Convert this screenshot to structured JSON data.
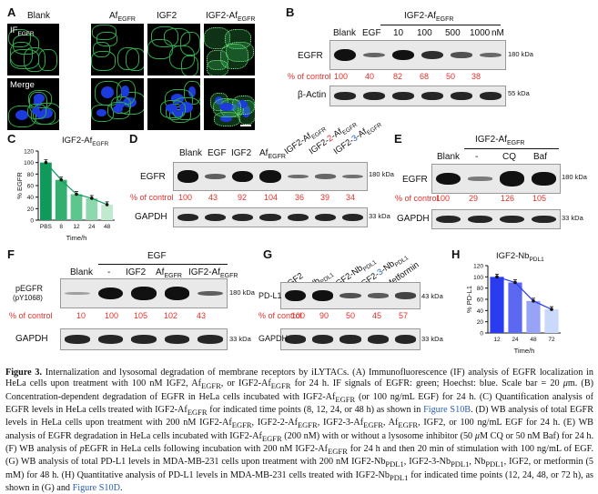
{
  "panelA": {
    "letter": "A",
    "columns": [
      "Blank",
      "Af",
      "IGF2",
      "IGF2-Af"
    ],
    "column_sub": [
      "",
      "EGFR",
      "",
      "EGFR"
    ],
    "row1_label": "IF",
    "row1_sub": "EGFR",
    "row2_label": "Merge"
  },
  "panelB": {
    "letter": "B",
    "group_label": "IGF2-Af",
    "group_sub": "EGFR",
    "lanes": [
      "Blank",
      "EGF",
      "10",
      "100",
      "500",
      "1000"
    ],
    "unit": "nM",
    "blot1_label": "EGFR",
    "blot1_mw": "180 kDa",
    "blot2_label": "β-Actin",
    "blot2_mw": "55 kDa",
    "pct_label": "% of control",
    "pct_values": [
      "100",
      "40",
      "82",
      "68",
      "50",
      "38"
    ]
  },
  "panelC": {
    "letter": "C",
    "title": "IGF2-Af",
    "title_sub": "EGFR",
    "chart_data": {
      "type": "bar",
      "categories": [
        "PBS",
        "8",
        "12",
        "24",
        "48"
      ],
      "values": [
        100,
        70,
        45,
        38,
        27
      ],
      "xlabel": "Time/h",
      "ylabel": "% EGFR",
      "ylim": [
        0,
        120
      ],
      "yticks": [
        "0",
        "20",
        "40",
        "60",
        "80",
        "100",
        "120"
      ],
      "colors": [
        "#0f9a5c",
        "#33b06f",
        "#5ec58c",
        "#8ed8ad",
        "#bfeacd"
      ]
    }
  },
  "panelD": {
    "letter": "D",
    "lanes": [
      "Blank",
      "EGF",
      "IGF2",
      "Af"
    ],
    "lane_sub": [
      "",
      "",
      "",
      "EGFR"
    ],
    "rot_lanes": [
      {
        "a": "IGF2-Af",
        "b": "",
        "c": "EGFR"
      },
      {
        "a": "IGF2-",
        "b": "2",
        "c": "-Af",
        "d": "EGFR"
      },
      {
        "a": "IGF2-",
        "b": "3",
        "c": "-Af",
        "d": "EGFR"
      }
    ],
    "blot1_label": "EGFR",
    "blot1_mw": "180 kDa",
    "blot2_label": "GAPDH",
    "blot2_mw": "33 kDa",
    "pct_label": "% of control",
    "pct_values": [
      "100",
      "43",
      "92",
      "104",
      "36",
      "39",
      "34"
    ]
  },
  "panelE": {
    "letter": "E",
    "group_label": "IGF2-Af",
    "group_sub": "EGFR",
    "lanes": [
      "Blank",
      "-",
      "CQ",
      "Baf"
    ],
    "blot1_label": "EGFR",
    "blot1_mw": "180 kDa",
    "blot2_label": "GAPDH",
    "blot2_mw": "33 kDa",
    "pct_label": "% of control",
    "pct_values": [
      "100",
      "29",
      "126",
      "105"
    ]
  },
  "panelF": {
    "letter": "F",
    "group_label": "EGF",
    "lanes": [
      "Blank",
      "-",
      "IGF2",
      "Af",
      "IGF2-Af"
    ],
    "lane_sub": [
      "",
      "",
      "",
      "EGFR",
      "EGFR"
    ],
    "blot1_label": "pEGFR",
    "blot1_label2": "(pY1068)",
    "blot1_mw": "180 kDa",
    "blot2_label": "GAPDH",
    "blot2_mw": "33 kDa",
    "pct_label": "% of control",
    "pct_values": [
      "10",
      "100",
      "105",
      "102",
      "43"
    ]
  },
  "panelG": {
    "letter": "G",
    "rot_lanes": [
      {
        "a": "IGF2",
        "b": "",
        "c": "",
        "d": ""
      },
      {
        "a": "Nb",
        "b": "",
        "c": "",
        "d": "PDL1"
      },
      {
        "a": "IGF2-Nb",
        "b": "",
        "c": "",
        "d": "PDL1"
      },
      {
        "a": "IGF2-",
        "b": "3",
        "c": "-Nb",
        "d": "PDL1"
      },
      {
        "a": "Metformin",
        "b": "",
        "c": "",
        "d": ""
      }
    ],
    "blot1_label": "PD-L1",
    "blot1_mw": "43 kDa",
    "blot2_label": "GAPDH",
    "blot2_mw": "33 kDa",
    "pct_label": "% of control",
    "pct_values": [
      "100",
      "90",
      "50",
      "45",
      "57"
    ]
  },
  "panelH": {
    "letter": "H",
    "title": "IGF2-Nb",
    "title_sub": "PDL1",
    "chart_data": {
      "type": "bar",
      "categories": [
        "12",
        "24",
        "48",
        "72"
      ],
      "values": [
        100,
        90,
        57,
        42
      ],
      "xlabel": "Time/h",
      "ylabel": "% PD-L1",
      "ylim": [
        0,
        120
      ],
      "yticks": [
        "0",
        "20",
        "40",
        "60",
        "80",
        "100",
        "120"
      ],
      "colors": [
        "#2b3cf0",
        "#5a68f2",
        "#97a3f7",
        "#c9d8fb"
      ]
    }
  },
  "caption": {
    "p01": "Figure 3.",
    "p02": " Internalization and lysosomal degradation of membrane receptors by iLYTACs. (A) Immunofluorescence (IF) analysis of EGFR localization in HeLa cells upon treatment with 100 nM IGF2, Af",
    "p03": "EGFR",
    "p04": ", or IGF2-Af",
    "p05": "EGFR",
    "p06": " for 24 h. IF signals of EGFR: green; Hoechst: blue. Scale bar = 20 ",
    "p07": "μ",
    "p08": "m. (B) Concentration-dependent degradation of EGFR in HeLa cells incubated with IGF2-Af",
    "p09": "EGFR",
    "p10": " (or 100 ng/mL EGF) for 24 h. (C) Quantification analysis of EGFR levels in HeLa cells treated with IGF2-Af",
    "p11": "EGFR",
    "p12": " for indicated time points (8, 12, 24, or 48 h) as shown in ",
    "p13": "Figure S10B",
    "p14": ". (D) WB analysis of total EGFR levels in HeLa cells upon treatment with 200 nM IGF2-Af",
    "p15": "EGFR",
    "p16": ", IGF2-2-Af",
    "p17": "EGFR",
    "p18": ", IGF2-3-Af",
    "p19": "EGFR",
    "p20": ", Af",
    "p21": "EGFR",
    "p22": ", IGF2, or 100 ng/mL EGF for 24 h. (E) WB analysis of EGFR degradation in HeLa cells incubated with IGF2-Af",
    "p23": "EGFR",
    "p24": " (200 nM) with or without a lysosome inhibitor (50 ",
    "p25": "μ",
    "p26": "M CQ or 50 nM Baf) for 24 h. (F) WB analysis of ",
    "p27": "p",
    "p28": "EGFR in HeLa cells following incubation with 200 nM IGF2-Af",
    "p29": "EGFR",
    "p30": " for 24 h and then 20 min of stimulation with 100 ng/mL of EGF. (G) WB analysis of total PD-L1 levels in MDA-MB-231 cells upon treatment with 200 nM IGF2-Nb",
    "p31": "PDL1",
    "p32": ", IGF2-3-Nb",
    "p33": "PDL1",
    "p34": ", Nb",
    "p35": "PDL1",
    "p36": ", IGF2, or metformin (5 mM) for 48 h. (H) Quantitative analysis of PD-L1 levels in MDA-MB-231 cells treated with IGF2-Nb",
    "p37": "PDL1",
    "p38": " for indicated time points (12, 24, 48, or 72 h), as shown in (G) and ",
    "p39": "Figure S10D",
    "p40": "."
  }
}
